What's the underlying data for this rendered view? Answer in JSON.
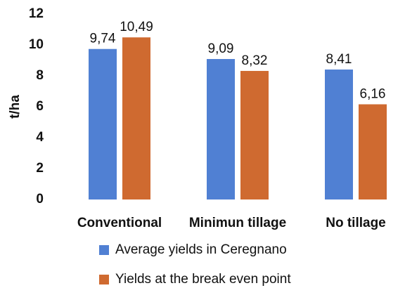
{
  "chart_data": {
    "type": "bar",
    "y_label": "t/ha",
    "categories": [
      "Conventional",
      "Minimun tillage",
      "No tillage"
    ],
    "series": [
      {
        "name": "Average yields in Ceregnano",
        "color": "#5080d3",
        "values": [
          9.74,
          9.09,
          8.41
        ],
        "value_labels": [
          "9,74",
          "9,09",
          "8,41"
        ]
      },
      {
        "name": "Yields at the break even point",
        "color": "#cf6a30",
        "values": [
          10.49,
          8.32,
          6.16
        ],
        "value_labels": [
          "10,49",
          "8,32",
          "6,16"
        ]
      }
    ],
    "ylim": [
      0,
      12
    ],
    "yticks": [
      0,
      2,
      4,
      6,
      8,
      10,
      12
    ],
    "grid": false
  }
}
